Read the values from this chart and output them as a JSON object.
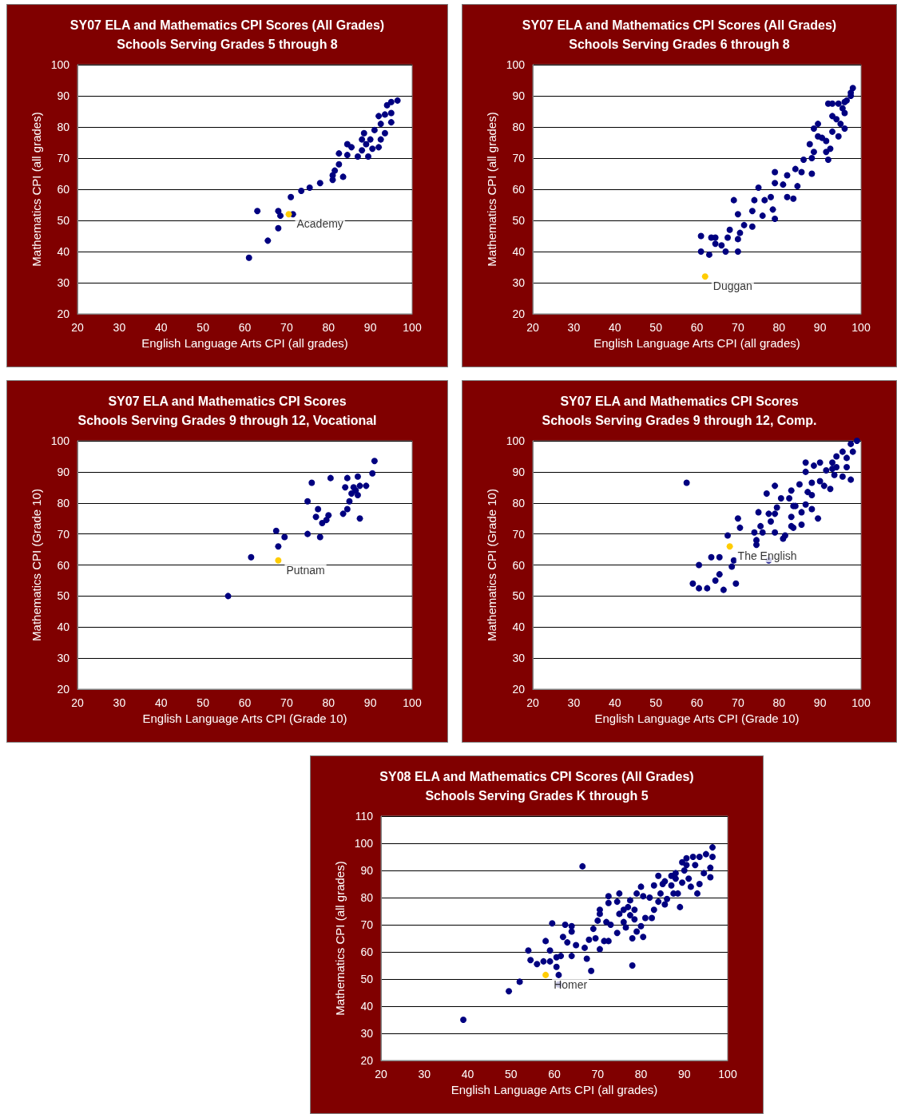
{
  "chart_data": [
    {
      "type": "scatter",
      "title": "SY07 ELA and Mathematics CPI Scores (All Grades)",
      "subtitle": "Schools Serving Grades 5 through 8",
      "xlabel": "English Language Arts CPI (all grades)",
      "ylabel": "Mathematics CPI (all grades)",
      "xlim": [
        20,
        100
      ],
      "xticks": [
        20,
        30,
        40,
        50,
        60,
        70,
        80,
        90,
        100
      ],
      "ylim": [
        20,
        100
      ],
      "yticks": [
        20,
        30,
        40,
        50,
        60,
        70,
        80,
        90,
        100
      ],
      "grid": "y",
      "marker": "circle",
      "series": [
        {
          "color": "#000080",
          "x": [
            61,
            65.5,
            68,
            63,
            68,
            68.5,
            71.5,
            71,
            73.5,
            75.5,
            78,
            81,
            81,
            81.5,
            82.5,
            83.5,
            82.5,
            84.5,
            84.5,
            85.5,
            87,
            88,
            88.5,
            89.5,
            89,
            91,
            90.5,
            92,
            92.5,
            93.5,
            92.5,
            92,
            93.5,
            95,
            95,
            94,
            95,
            96.5,
            90,
            88
          ],
          "values": [
            38,
            43.5,
            47.5,
            53,
            53,
            51.5,
            52,
            57.5,
            59.5,
            60.5,
            62,
            63,
            64.5,
            66,
            68,
            64,
            71.5,
            74.5,
            71,
            73.5,
            70.5,
            72.5,
            78,
            70.5,
            74.5,
            79,
            73,
            73.5,
            76,
            78,
            81,
            83.5,
            84,
            81.5,
            84.5,
            87,
            88,
            88.5,
            76,
            76
          ]
        },
        {
          "color": "#ffcc00",
          "x": [
            70.5
          ],
          "values": [
            52
          ]
        }
      ],
      "annotations": [
        {
          "text": "Academy",
          "x": 70.5,
          "y": 52
        }
      ]
    },
    {
      "type": "scatter",
      "title": "SY07 ELA and Mathematics CPI Scores (All Grades)",
      "subtitle": "Schools Serving Grades 6 through 8",
      "xlabel": "English Language Arts CPI (all grades)",
      "ylabel": "Mathematics CPI (all grades)",
      "xlim": [
        20,
        100
      ],
      "xticks": [
        20,
        30,
        40,
        50,
        60,
        70,
        80,
        90,
        100
      ],
      "ylim": [
        20,
        100
      ],
      "yticks": [
        20,
        30,
        40,
        50,
        60,
        70,
        80,
        90,
        100
      ],
      "grid": "y",
      "marker": "circle",
      "series": [
        {
          "color": "#000080",
          "x": [
            61,
            61,
            63,
            63.5,
            64.5,
            64.5,
            66,
            67,
            67.5,
            68,
            70,
            70,
            70.5,
            69,
            70,
            71.5,
            73.5,
            73.5,
            74,
            75,
            76.5,
            76,
            78,
            78.5,
            79,
            79,
            81,
            79,
            82,
            82,
            83.5,
            84.5,
            84,
            85.5,
            86,
            88,
            88,
            87.5,
            88.5,
            88.5,
            89.5,
            89.5,
            90.5,
            91.5,
            91.5,
            92,
            92.5,
            93,
            93,
            93,
            94,
            94.5,
            95,
            95.5,
            96,
            96,
            96.5,
            97.5,
            98,
            97.5,
            96,
            94.5,
            92
          ],
          "values": [
            45,
            40,
            39,
            44.5,
            44.5,
            42.5,
            42,
            40,
            44.5,
            47,
            40,
            44,
            46,
            56.5,
            52,
            48.5,
            48,
            53,
            56.5,
            60.5,
            56.5,
            51.5,
            57.5,
            53.5,
            50.5,
            62,
            61.5,
            65.5,
            64.5,
            57.5,
            57,
            61,
            66.5,
            65.5,
            69.5,
            65,
            70,
            74.5,
            72,
            79.5,
            81,
            77,
            76.5,
            72,
            75.5,
            69.5,
            73,
            78.5,
            83.5,
            87.5,
            82.5,
            77,
            81,
            86,
            79.5,
            84.5,
            88.5,
            91,
            92.5,
            90,
            88,
            87.5,
            87.5
          ]
        },
        {
          "color": "#ffcc00",
          "x": [
            62
          ],
          "values": [
            32
          ]
        }
      ],
      "annotations": [
        {
          "text": "Duggan",
          "x": 62,
          "y": 32
        }
      ]
    },
    {
      "type": "scatter",
      "title": "SY07 ELA and Mathematics CPI Scores",
      "subtitle": "Schools Serving Grades 9 through 12, Vocational",
      "xlabel": "English Language Arts CPI (Grade 10)",
      "ylabel": "Mathematics CPI (Grade 10)",
      "xlim": [
        20,
        100
      ],
      "xticks": [
        20,
        30,
        40,
        50,
        60,
        70,
        80,
        90,
        100
      ],
      "ylim": [
        20,
        100
      ],
      "yticks": [
        20,
        30,
        40,
        50,
        60,
        70,
        80,
        90,
        100
      ],
      "grid": "y",
      "marker": "circle",
      "series": [
        {
          "color": "#000080",
          "x": [
            56,
            61.5,
            68,
            67.5,
            69.5,
            75,
            78,
            75,
            76,
            77.5,
            77,
            78.5,
            79.5,
            80,
            80.5,
            83.5,
            84.5,
            85,
            84,
            84.5,
            87,
            87.5,
            86,
            87.5,
            89,
            85.5,
            87,
            86.5,
            90.5,
            91
          ],
          "values": [
            50,
            62.5,
            66,
            71,
            69,
            70,
            69,
            80.5,
            86.5,
            78,
            75.5,
            73.5,
            74.5,
            76,
            88,
            76.5,
            78,
            80.5,
            85,
            88,
            88.5,
            75,
            85,
            85.5,
            85.5,
            83,
            82.5,
            84,
            89.5,
            93.5
          ]
        },
        {
          "color": "#ffcc00",
          "x": [
            68
          ],
          "values": [
            61.5
          ]
        }
      ],
      "annotations": [
        {
          "text": "Putnam",
          "x": 68,
          "y": 61.5
        }
      ]
    },
    {
      "type": "scatter",
      "title": "SY07 ELA and Mathematics CPI Scores",
      "subtitle": "Schools Serving Grades 9 through 12, Comp.",
      "xlabel": "English Language Arts CPI (Grade 10)",
      "ylabel": "Mathematics CPI (Grade 10)",
      "xlim": [
        20,
        100
      ],
      "xticks": [
        20,
        30,
        40,
        50,
        60,
        70,
        80,
        90,
        100
      ],
      "ylim": [
        20,
        100
      ],
      "yticks": [
        20,
        30,
        40,
        50,
        60,
        70,
        80,
        90,
        100
      ],
      "grid": "y",
      "marker": "circle",
      "series": [
        {
          "color": "#000080",
          "x": [
            57.5,
            59,
            60.5,
            62.5,
            66.5,
            69.5,
            60.5,
            63.5,
            65.5,
            64.5,
            65.5,
            68.5,
            69,
            67.5,
            70,
            70.5,
            74.5,
            74.5,
            77.5,
            74,
            75.5,
            76,
            75,
            77.5,
            78,
            79,
            79,
            79.5,
            77,
            79,
            81,
            81.5,
            80.5,
            82.5,
            83,
            83.5,
            83,
            83.5,
            84,
            85.5,
            85.5,
            86.5,
            88,
            89.5,
            83,
            85,
            86.5,
            86.5,
            88.5,
            87,
            88,
            90,
            91,
            92.5,
            93.5,
            93,
            91.5,
            94,
            95.5,
            97.5,
            96.5,
            97.5,
            99,
            98,
            95.5,
            94,
            93,
            90,
            96.5,
            88
          ],
          "values": [
            86.5,
            54,
            52.5,
            52.5,
            52,
            54,
            60,
            62.5,
            62.5,
            55,
            57,
            59.5,
            61.5,
            69.5,
            75,
            72,
            66.5,
            68,
            61.5,
            70.5,
            72.5,
            70.5,
            77,
            76.5,
            74,
            76.5,
            70.5,
            78.5,
            83,
            85.5,
            68.5,
            69.5,
            81.5,
            81.5,
            72.5,
            72,
            75.5,
            79,
            79,
            73,
            77,
            79.5,
            78,
            75,
            84,
            86,
            90,
            93,
            92,
            83.5,
            82.5,
            93,
            85.5,
            84.5,
            89,
            91,
            90.5,
            91.5,
            88.5,
            87.5,
            94.5,
            99,
            100,
            96.5,
            96.5,
            95,
            93,
            87,
            91.5,
            86.5
          ]
        },
        {
          "color": "#ffcc00",
          "x": [
            68
          ],
          "values": [
            66
          ]
        }
      ],
      "annotations": [
        {
          "text": "The English",
          "x": 68,
          "y": 66
        }
      ]
    },
    {
      "type": "scatter",
      "title": "SY08 ELA and Mathematics CPI Scores (All Grades)",
      "subtitle": "Schools Serving Grades K through 5",
      "xlabel": "English Language Arts CPI (all grades)",
      "ylabel": "Mathematics CPI (all grades)",
      "xlim": [
        20,
        100
      ],
      "xticks": [
        20,
        30,
        40,
        50,
        60,
        70,
        80,
        90,
        100
      ],
      "ylim": [
        20,
        110
      ],
      "yticks": [
        20,
        30,
        40,
        50,
        60,
        70,
        80,
        90,
        100,
        110
      ],
      "grid": "y",
      "marker": "circle",
      "series": [
        {
          "color": "#000080",
          "x": [
            39,
            49.5,
            52,
            61,
            61,
            60.5,
            68.5,
            78,
            66.5,
            56,
            54.5,
            54,
            57.5,
            59,
            59,
            58,
            59.5,
            60.5,
            61.5,
            64,
            62,
            63,
            62.5,
            64,
            64,
            65,
            67,
            67.5,
            68,
            69,
            69.5,
            70.5,
            71.5,
            72.5,
            70,
            70.5,
            70.5,
            72.5,
            72.5,
            72,
            73,
            74.5,
            75,
            75,
            76,
            76.5,
            78,
            78.5,
            79,
            80.5,
            80,
            77.5,
            78.5,
            77.5,
            79,
            80,
            80.5,
            81,
            82.5,
            84,
            83,
            82,
            83,
            84,
            84.5,
            85.5,
            86,
            87,
            87.5,
            85.5,
            87,
            88,
            89,
            88.5,
            89.5,
            90,
            90.5,
            91,
            91.5,
            93,
            92.5,
            93.5,
            92,
            94.5,
            96,
            96,
            96.5,
            96.5,
            95,
            90.5,
            88,
            85,
            89.5,
            93.5,
            74.5,
            76,
            77
          ],
          "values": [
            35,
            45.5,
            49,
            48,
            51.5,
            54.5,
            53,
            55,
            91.5,
            55.5,
            57,
            60.5,
            56.5,
            56.5,
            60.5,
            64,
            70.5,
            58,
            58.5,
            58.5,
            65.5,
            63.5,
            70,
            69.5,
            67.5,
            62.5,
            61.5,
            57.5,
            64.5,
            68.5,
            65,
            61,
            64,
            64,
            71.5,
            74,
            75.5,
            80.5,
            78,
            71,
            70,
            67,
            74,
            81.5,
            71,
            69,
            65,
            72,
            67.5,
            65.5,
            69.5,
            79,
            75.5,
            73.5,
            81.5,
            84,
            80.5,
            72.5,
            72.5,
            88,
            84.5,
            80,
            75.5,
            78.5,
            81.5,
            77.5,
            79.5,
            84.5,
            81.5,
            86,
            88,
            89,
            76.5,
            81.5,
            85.5,
            90,
            94.5,
            87,
            84,
            81.5,
            92,
            95,
            95,
            89,
            87.5,
            91,
            95,
            98.5,
            96,
            92,
            87,
            85,
            93,
            85,
            78.5,
            75.5,
            76.5
          ]
        },
        {
          "color": "#ffcc00",
          "x": [
            58
          ],
          "values": [
            51.5
          ]
        }
      ],
      "annotations": [
        {
          "text": "Homer",
          "x": 58,
          "y": 51.5
        }
      ]
    }
  ]
}
